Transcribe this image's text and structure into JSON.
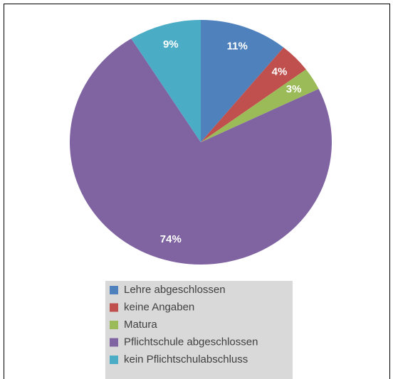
{
  "chart_data": {
    "type": "pie",
    "categories": [
      "Lehre abgeschlossen",
      "keine Angaben",
      "Matura",
      "Pflichtschule abgeschlossen",
      "kein Pflichtschulabschluss"
    ],
    "values": [
      11,
      4,
      3,
      74,
      9
    ],
    "value_labels": [
      "11%",
      "4%",
      "3%",
      "74%",
      "9%"
    ],
    "colors": [
      "#4f81bd",
      "#c0504d",
      "#9bbb59",
      "#8064a2",
      "#4bacc6"
    ]
  }
}
